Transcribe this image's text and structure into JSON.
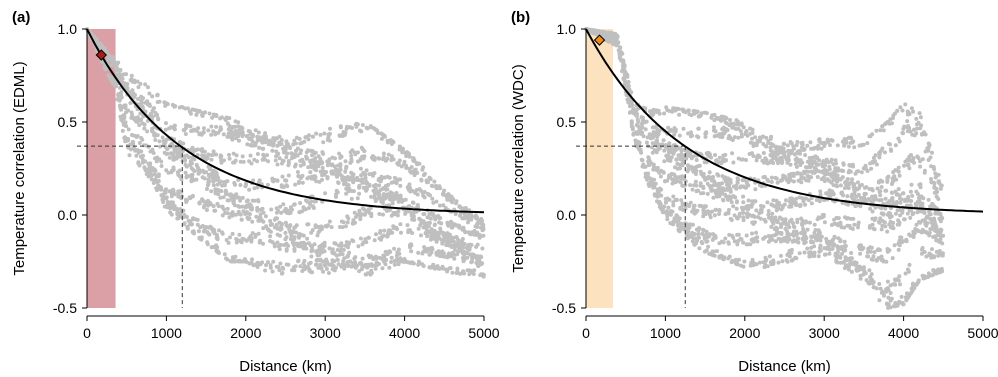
{
  "chart_data": [
    {
      "type": "scatter",
      "panel_label": "(a)",
      "xlabel": "Distance (km)",
      "ylabel": "Temperature correlation (EDML)",
      "xlim": [
        0,
        5000
      ],
      "ylim": [
        -0.5,
        1.0
      ],
      "xticks": [
        "0",
        "1000",
        "2000",
        "3000",
        "4000",
        "5000"
      ],
      "yticks": [
        "-0.5",
        "0.0",
        "0.5",
        "1.0"
      ],
      "grid": false,
      "shaded_band": {
        "x": [
          0,
          360
        ],
        "color": "#dba0a6"
      },
      "marker": {
        "x": 180,
        "y": 0.86,
        "shape": "diamond",
        "color": "#b01818"
      },
      "reference_lines": {
        "x": 1200,
        "y": 0.37
      },
      "fit_curve": {
        "function": "exp(-x/1200)",
        "x": [
          0,
          500,
          1000,
          1500,
          2000,
          2500,
          3000,
          3500,
          4000,
          4500,
          5000
        ],
        "y": [
          1.0,
          0.66,
          0.43,
          0.29,
          0.19,
          0.12,
          0.08,
          0.05,
          0.04,
          0.02,
          0.02
        ]
      },
      "scatter_envelope": {
        "color": "#bfbfbf",
        "x": [
          0,
          360,
          500,
          800,
          1000,
          1500,
          1800,
          2000,
          2500,
          3000,
          3500,
          4000,
          4500,
          5000
        ],
        "upper": [
          1.0,
          0.85,
          0.8,
          0.7,
          0.6,
          0.55,
          0.52,
          0.48,
          0.48,
          0.5,
          0.5,
          0.35,
          0.15,
          0.0
        ],
        "lower": [
          1.0,
          0.65,
          0.3,
          0.15,
          0.0,
          -0.15,
          -0.25,
          -0.25,
          -0.35,
          -0.38,
          -0.35,
          -0.25,
          -0.3,
          -0.35
        ]
      }
    },
    {
      "type": "scatter",
      "panel_label": "(b)",
      "xlabel": "Distance (km)",
      "ylabel": "Temperature correlation (WDC)",
      "xlim": [
        0,
        5000
      ],
      "ylim": [
        -0.5,
        1.0
      ],
      "xticks": [
        "0",
        "1000",
        "2000",
        "3000",
        "4000",
        "5000"
      ],
      "yticks": [
        "-0.5",
        "0.0",
        "0.5",
        "1.0"
      ],
      "grid": false,
      "shaded_band": {
        "x": [
          0,
          340
        ],
        "color": "#fde2bf"
      },
      "marker": {
        "x": 170,
        "y": 0.94,
        "shape": "diamond",
        "color": "#f08a1c"
      },
      "reference_lines": {
        "x": 1250,
        "y": 0.37
      },
      "fit_curve": {
        "function": "exp(-x/1250)",
        "x": [
          0,
          500,
          1000,
          1500,
          2000,
          2500,
          3000,
          3500,
          4000,
          4500,
          5000
        ],
        "y": [
          1.0,
          0.67,
          0.45,
          0.3,
          0.2,
          0.14,
          0.09,
          0.06,
          0.04,
          0.03,
          0.02
        ]
      },
      "scatter_envelope": {
        "color": "#bfbfbf",
        "x": [
          0,
          400,
          600,
          800,
          1000,
          1500,
          2000,
          2500,
          3000,
          3500,
          3800,
          4000,
          4200,
          4500
        ],
        "upper": [
          1.0,
          0.98,
          0.62,
          0.58,
          0.58,
          0.55,
          0.5,
          0.45,
          0.45,
          0.4,
          0.5,
          0.6,
          0.55,
          0.15
        ],
        "lower": [
          1.0,
          0.9,
          0.4,
          0.1,
          -0.05,
          -0.2,
          -0.28,
          -0.28,
          -0.28,
          -0.38,
          -0.5,
          -0.48,
          -0.35,
          -0.3
        ]
      }
    }
  ]
}
